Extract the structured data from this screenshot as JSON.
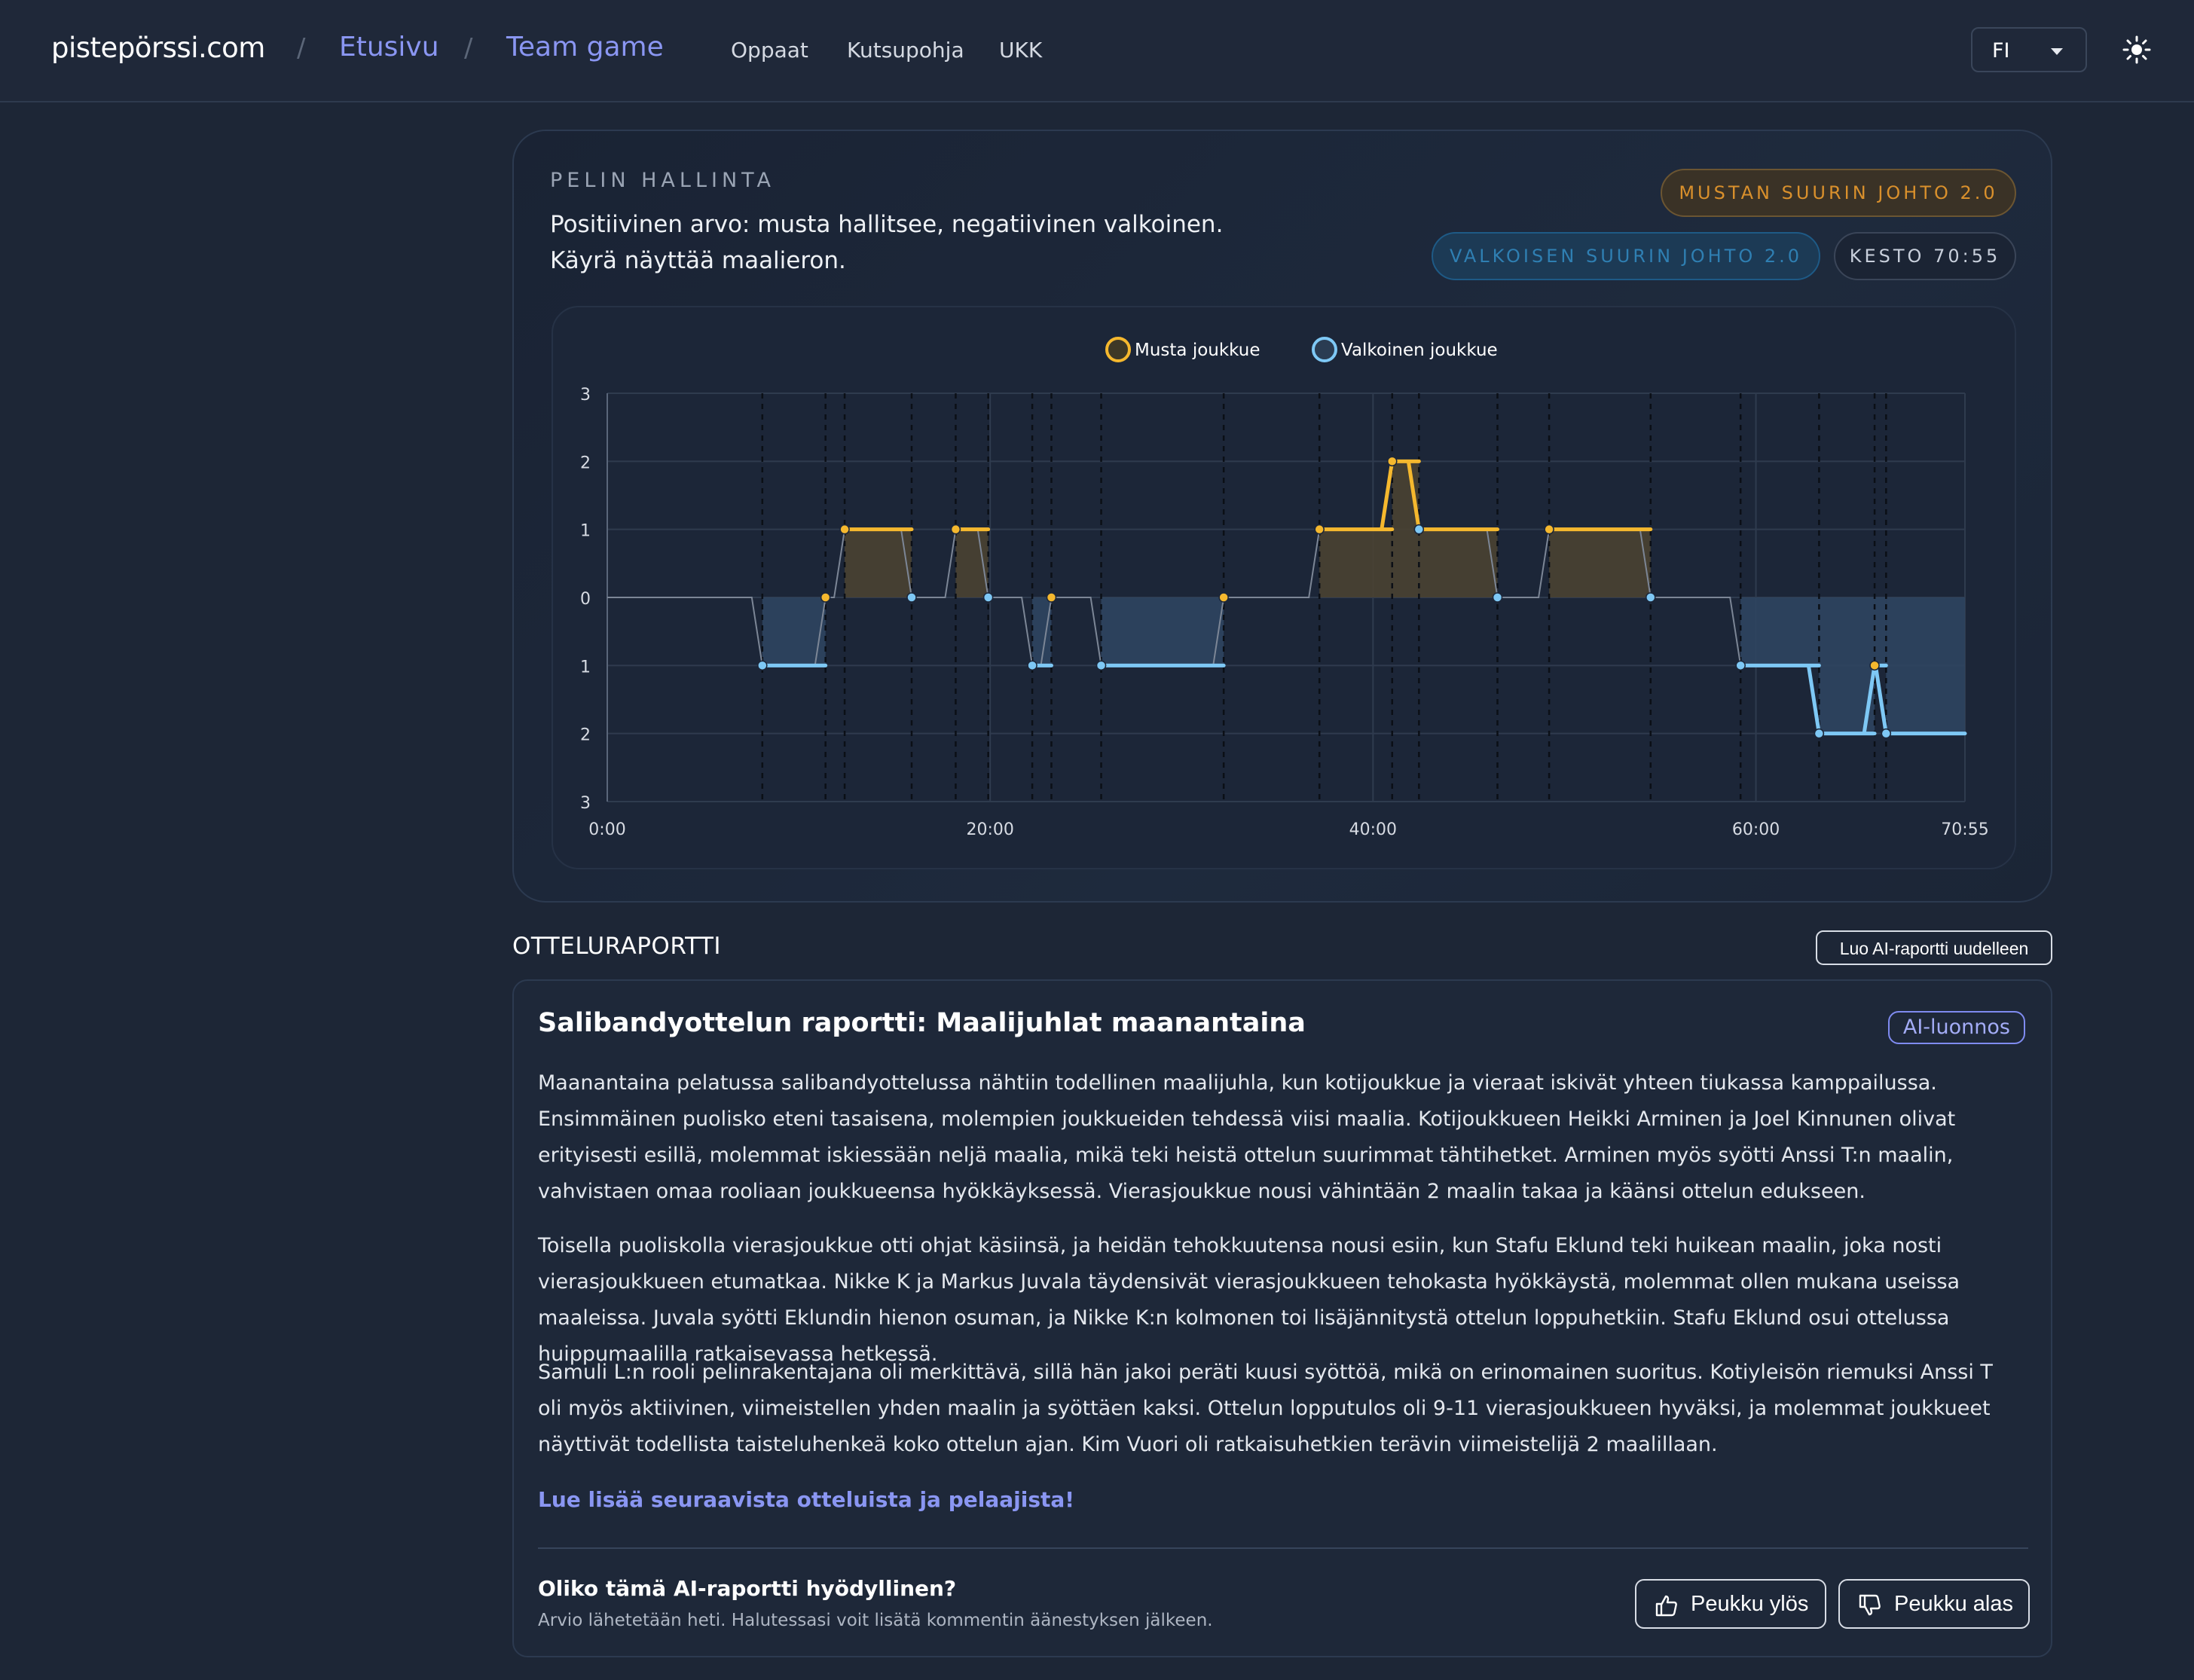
{
  "header": {
    "brand": "pistepörssi.com",
    "separator": "/",
    "breadcrumbs": [
      "Etusivu",
      "Team game"
    ],
    "nav": [
      "Oppaat",
      "Kutsupohja",
      "UKK"
    ],
    "language": "FI",
    "theme_icon": "sun-icon"
  },
  "control": {
    "eyebrow": "PELIN HALLINTA",
    "description": "Positiivinen arvo: musta hallitsee, negatiivinen valkoinen. Käyrä näyttää maalieron.",
    "badge_black": "MUSTAN SUURIN JOHTO 2.0",
    "badge_white": "VALKOISEN SUURIN JOHTO 2.0",
    "badge_duration": "KESTO 70:55"
  },
  "chart_data": {
    "type": "line",
    "legend": [
      "Musta joukkue",
      "Valkoinen joukkue"
    ],
    "legend_position": "top",
    "colors": {
      "black_team": "#f5b82e",
      "white_team": "#7ec8f5",
      "black_fill": "#4a4332",
      "white_fill": "#2f4560"
    },
    "x_ticks": [
      "0:00",
      "20:00",
      "40:00",
      "60:00",
      "70:55"
    ],
    "x_tick_minutes": [
      0,
      20,
      40,
      60,
      70.92
    ],
    "y_ticks": [
      "3",
      "2",
      "1",
      "0",
      "1",
      "2",
      "3"
    ],
    "ylim": [
      -3,
      3
    ],
    "xlim_minutes": [
      0,
      70.92
    ],
    "grid": true,
    "goals": [
      {
        "t": 8.1,
        "team": "white",
        "diff": -1
      },
      {
        "t": 11.4,
        "team": "black",
        "diff": 0
      },
      {
        "t": 12.4,
        "team": "black",
        "diff": 1
      },
      {
        "t": 15.9,
        "team": "white",
        "diff": 0
      },
      {
        "t": 18.2,
        "team": "black",
        "diff": 1
      },
      {
        "t": 19.9,
        "team": "white",
        "diff": 0
      },
      {
        "t": 22.2,
        "team": "white",
        "diff": -1
      },
      {
        "t": 23.2,
        "team": "black",
        "diff": 0
      },
      {
        "t": 25.8,
        "team": "white",
        "diff": -1
      },
      {
        "t": 32.2,
        "team": "black",
        "diff": 0
      },
      {
        "t": 37.2,
        "team": "black",
        "diff": 1
      },
      {
        "t": 41.0,
        "team": "black",
        "diff": 2
      },
      {
        "t": 42.4,
        "team": "white",
        "diff": 1
      },
      {
        "t": 46.5,
        "team": "white",
        "diff": 0
      },
      {
        "t": 49.2,
        "team": "black",
        "diff": 1
      },
      {
        "t": 54.5,
        "team": "white",
        "diff": 0
      },
      {
        "t": 59.2,
        "team": "white",
        "diff": -1
      },
      {
        "t": 63.3,
        "team": "white",
        "diff": -2
      },
      {
        "t": 66.2,
        "team": "black",
        "diff": -1
      },
      {
        "t": 66.8,
        "team": "white",
        "diff": -2
      }
    ]
  },
  "report": {
    "heading": "OTTELURAPORTTI",
    "regenerate": "Luo AI-raportti uudelleen",
    "title": "Salibandyottelun raportti: Maalijuhlat maanantaina",
    "ai_badge": "AI-luonnos",
    "paragraphs": [
      "Maanantaina pelatussa salibandyottelussa nähtiin todellinen maalijuhla, kun kotijoukkue ja vieraat iskivät yhteen tiukassa kamppailussa. Ensimmäinen puolisko eteni tasaisena, molempien joukkueiden tehdessä viisi maalia. Kotijoukkueen Heikki Arminen ja Joel Kinnunen olivat erityisesti esillä, molemmat iskiessään neljä maalia, mikä teki heistä ottelun suurimmat tähtihetket. Arminen myös syötti Anssi T:n maalin, vahvistaen omaa rooliaan joukkueensa hyökkäyksessä. Vierasjoukkue nousi vähintään 2 maalin takaa ja käänsi ottelun edukseen.",
      "Toisella puoliskolla vierasjoukkue otti ohjat käsiinsä, ja heidän tehokkuutensa nousi esiin, kun Stafu Eklund teki huikean maalin, joka nosti vierasjoukkueen etumatkaa. Nikke K ja Markus Juvala täydensivät vierasjoukkueen tehokasta hyökkäystä, molemmat ollen mukana useissa maaleissa. Juvala syötti Eklundin hienon osuman, ja Nikke K:n kolmonen toi lisäjännitystä ottelun loppuhetkiin. Stafu Eklund osui ottelussa huippumaalilla ratkaisevassa hetkessä.",
      "Samuli L:n rooli pelinrakentajana oli merkittävä, sillä hän jakoi peräti kuusi syöttöä, mikä on erinomainen suoritus. Kotiyleisön riemuksi Anssi T oli myös aktiivinen, viimeistellen yhden maalin ja syöttäen kaksi. Ottelun lopputulos oli 9-11 vierasjoukkueen hyväksi, ja molemmat joukkueet näyttivät todellista taisteluhenkeä koko ottelun ajan. Kim Vuori oli ratkaisuhetkien terävin viimeistelijä 2 maalillaan."
    ],
    "more_link": "Lue lisää seuraavista otteluista ja pelaajista!",
    "feedback_question": "Oliko tämä AI-raportti hyödyllinen?",
    "feedback_note": "Arvio lähetetään heti. Halutessasi voit lisätä kommentin äänestyksen jälkeen.",
    "thumbs_up": "Peukku ylös",
    "thumbs_down": "Peukku alas"
  }
}
